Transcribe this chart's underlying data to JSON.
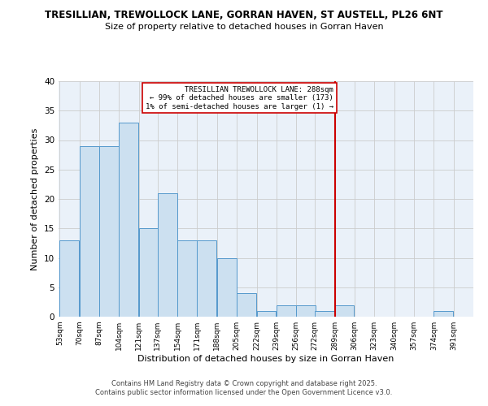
{
  "title_line1": "TRESILLIAN, TREWOLLOCK LANE, GORRAN HAVEN, ST AUSTELL, PL26 6NT",
  "title_line2": "Size of property relative to detached houses in Gorran Haven",
  "xlabel": "Distribution of detached houses by size in Gorran Haven",
  "ylabel": "Number of detached properties",
  "bin_labels": [
    "53sqm",
    "70sqm",
    "87sqm",
    "104sqm",
    "121sqm",
    "137sqm",
    "154sqm",
    "171sqm",
    "188sqm",
    "205sqm",
    "222sqm",
    "239sqm",
    "256sqm",
    "272sqm",
    "289sqm",
    "306sqm",
    "323sqm",
    "340sqm",
    "357sqm",
    "374sqm",
    "391sqm"
  ],
  "bin_edges": [
    53,
    70,
    87,
    104,
    121,
    137,
    154,
    171,
    188,
    205,
    222,
    239,
    256,
    272,
    289,
    306,
    323,
    340,
    357,
    374,
    391
  ],
  "bar_heights": [
    13,
    29,
    29,
    33,
    15,
    21,
    13,
    13,
    10,
    4,
    1,
    2,
    2,
    1,
    2,
    0,
    0,
    0,
    0,
    1,
    0
  ],
  "bar_color": "#cce0f0",
  "bar_edge_color": "#5599cc",
  "red_line_x": 289,
  "annotation_title": "TRESILLIAN TREWOLLOCK LANE: 288sqm",
  "annotation_line1": "← 99% of detached houses are smaller (173)",
  "annotation_line2": "1% of semi-detached houses are larger (1) →",
  "annotation_box_color": "#ffffff",
  "annotation_border_color": "#cc0000",
  "red_line_color": "#cc0000",
  "ylim": [
    0,
    40
  ],
  "yticks": [
    0,
    5,
    10,
    15,
    20,
    25,
    30,
    35,
    40
  ],
  "grid_color": "#cccccc",
  "bg_color": "#eaf1f9",
  "footer_line1": "Contains HM Land Registry data © Crown copyright and database right 2025.",
  "footer_line2": "Contains public sector information licensed under the Open Government Licence v3.0."
}
